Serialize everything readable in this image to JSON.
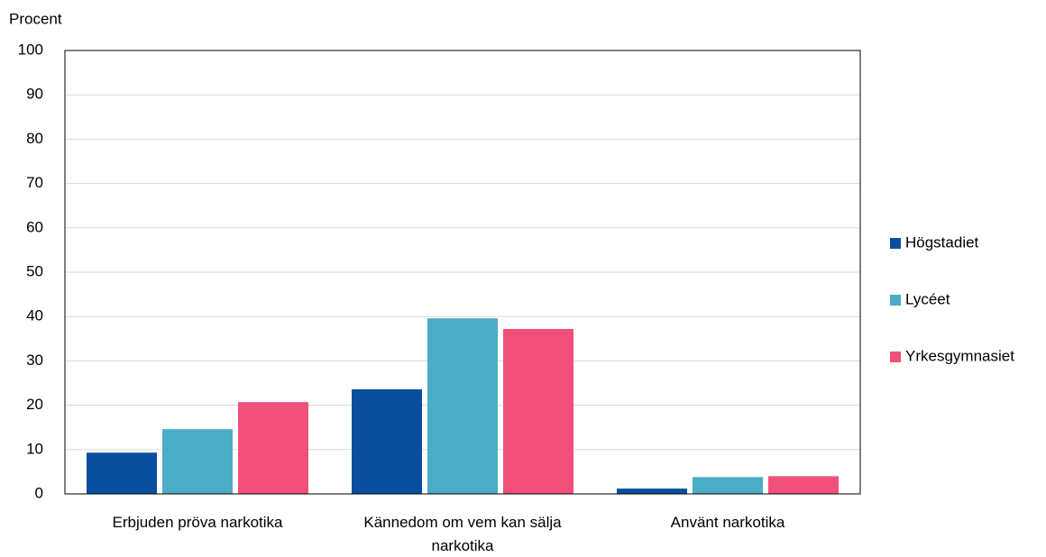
{
  "chart_data": {
    "type": "bar",
    "y_label": "Procent",
    "categories": [
      "Erbjuden pröva narkotika",
      "Kännedom om vem kan sälja narkotika",
      "Använt narkotika"
    ],
    "series": [
      {
        "name": "Högstadiet",
        "color": "#0a4ea0",
        "values": [
          9.3,
          23.6,
          1.2
        ]
      },
      {
        "name": "Lycéet",
        "color": "#4bacc6",
        "values": [
          14.6,
          39.6,
          3.8
        ]
      },
      {
        "name": "Yrkesgymnasiet",
        "color": "#f0507a",
        "values": [
          20.7,
          37.2,
          4.0
        ]
      }
    ],
    "ylim": [
      0,
      100
    ],
    "yticks": [
      0,
      10,
      20,
      30,
      40,
      50,
      60,
      70,
      80,
      90,
      100
    ],
    "grid": true,
    "legend": "right"
  }
}
